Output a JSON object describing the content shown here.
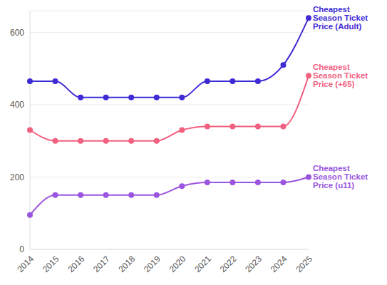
{
  "chart_data": {
    "type": "line",
    "categories": [
      "2014",
      "2015",
      "2016",
      "2017",
      "2018",
      "2019",
      "2020",
      "2021",
      "2022",
      "2023",
      "2024",
      "2025"
    ],
    "series": [
      {
        "name": "Cheapest Season Ticket Price (Adult)",
        "color": "#3f2bd6",
        "marker": "circle",
        "line_style": "solid",
        "values": [
          465,
          465,
          420,
          420,
          420,
          420,
          420,
          465,
          465,
          465,
          510,
          640
        ]
      },
      {
        "name": "Cheapest Season Ticket Price (+65)",
        "color": "#f2607f",
        "marker": "circle",
        "line_style": "solid",
        "values": [
          330,
          300,
          300,
          300,
          300,
          300,
          330,
          340,
          340,
          340,
          340,
          480
        ]
      },
      {
        "name": "Cheapest Season Ticket Price (u11)",
        "color": "#9b55e0",
        "marker": "circle",
        "line_style": "solid",
        "values": [
          95,
          150,
          150,
          150,
          150,
          150,
          175,
          185,
          185,
          185,
          185,
          200
        ]
      }
    ],
    "ylim": [
      0,
      660
    ],
    "yticks": [
      0,
      200,
      400,
      600
    ],
    "grid": true
  }
}
